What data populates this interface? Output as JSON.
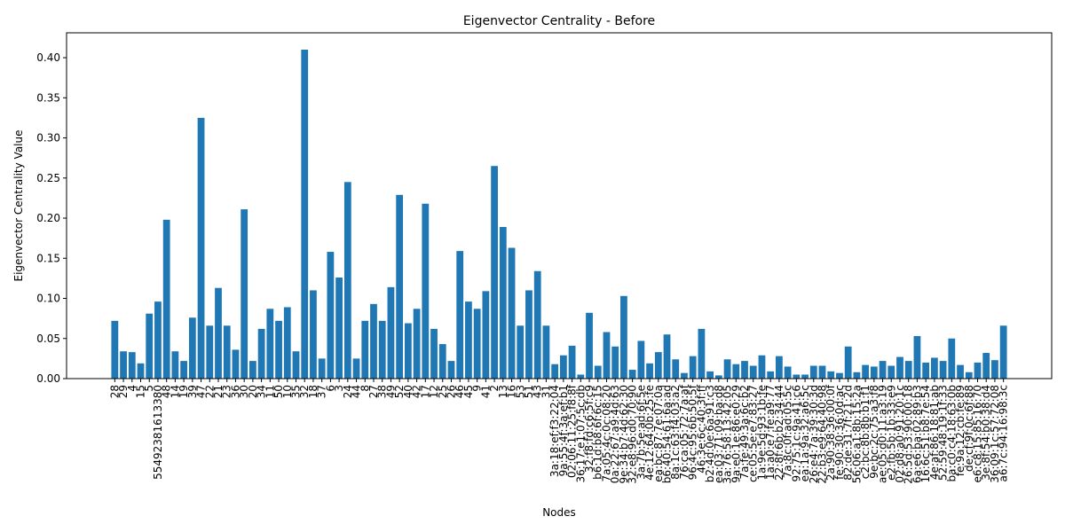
{
  "chart_data": {
    "type": "bar",
    "title": "Eigenvector Centrality - Before",
    "x_label": "Nodes",
    "y_label": "Eigenvector Centrality Value",
    "color": "#1f77b4",
    "categories": [
      "28",
      "29",
      "4",
      "15",
      "5",
      "55492381613380",
      "48",
      "14",
      "19",
      "39",
      "47",
      "22",
      "21",
      "23",
      "36",
      "30",
      "20",
      "34",
      "11",
      "50",
      "10",
      "35",
      "32",
      "18",
      "37",
      "6",
      "3",
      "24",
      "44",
      "8",
      "27",
      "38",
      "49",
      "52",
      "40",
      "42",
      "17",
      "12",
      "25",
      "26",
      "46",
      "45",
      "9",
      "41",
      "2",
      "13",
      "16",
      "53",
      "51",
      "43",
      "31",
      "3a:18:ef:f3:22:04",
      "9a:55:4f:3a:ef:b1",
      "02:06:11:25:f8:8f",
      "36:17:e1:07:5c:db",
      "32:f8:fd:c6:5f:c9",
      "b6:1d:b8:6f:6c:15",
      "7a:05:4c:0c:08:20",
      "0a:22:67:a9:4d:63",
      "9e:34:b7:4d:62:30",
      "32:e8:96:d0:70:90",
      "3a:7b:5e:ad:6f:5e",
      "4e:12:64:0b:25:fe",
      "ea:bc:87:7e:07:0a",
      "b6:40:54:61:6a:ad",
      "8a:1c:63:f4:03:a2",
      "76:ca:05:72:7a:af",
      "96:4c:95:6b:50:5f",
      "46:3e:6c:40:3f:ff",
      "b2:4d:0e:6a:91:c3",
      "ea:03:71:09:ba:d8",
      "3a:76:58:13:42:05",
      "9a:e0:1e:86:e0:29",
      "7a:fe:49:3a:6c:b2",
      "ce:05:5e:e7:83:27",
      "1a:9e:5d:93:1b:fe",
      "1a:a0:e7:fe:a9:77",
      "22:8f:6b:b2:34:44",
      "7a:8c:0f:ad:05:5c",
      "92:75:1c:9a:41:c6",
      "ea:1a:9a:32:a6:5c",
      "26:e4:7a:39:30:3d",
      "22:b3:e9:64:40:98",
      "2a:90:38:36:00:0f",
      "fe:90:30:36:0d:ac",
      "82:de:31:7f:21:2d",
      "56:06:a1:8b:15:2a",
      "c2:bc:8b:8b:b1:f1",
      "9e:bc:2c:75:a3:f8",
      "ae:05:d0:11:a3:19",
      "e2:fb:5b:1b:33:e9",
      "02:d8:a0:91:20:1c",
      "26:5d:53:90:00:18",
      "6a:e6:ba:02:89:b3",
      "16:6c:51:b8:7e:54",
      "4e:af:86:18:81:ab",
      "52:59:48:19:1f:33",
      "ba:c0:c4:18:63:0b",
      "fe:9a:12:cb:fe:89",
      "de:cf:9f:0c:6f:88",
      "e6:c8:15:85:16:70",
      "3e:8f:54:b0:38:d4",
      "36:09:1c:57:72:08",
      "a6:7c:94:16:98:3c"
    ],
    "values": [
      0.072,
      0.034,
      0.033,
      0.019,
      0.081,
      0.096,
      0.198,
      0.034,
      0.022,
      0.076,
      0.325,
      0.066,
      0.113,
      0.066,
      0.036,
      0.211,
      0.022,
      0.062,
      0.087,
      0.072,
      0.089,
      0.034,
      0.41,
      0.11,
      0.025,
      0.158,
      0.126,
      0.245,
      0.025,
      0.072,
      0.093,
      0.072,
      0.114,
      0.229,
      0.069,
      0.087,
      0.218,
      0.062,
      0.043,
      0.022,
      0.159,
      0.096,
      0.087,
      0.109,
      0.265,
      0.189,
      0.163,
      0.066,
      0.11,
      0.134,
      0.066,
      0.018,
      0.029,
      0.041,
      0.005,
      0.082,
      0.016,
      0.058,
      0.04,
      0.103,
      0.011,
      0.047,
      0.019,
      0.033,
      0.055,
      0.024,
      0.007,
      0.028,
      0.062,
      0.009,
      0.004,
      0.024,
      0.018,
      0.022,
      0.016,
      0.029,
      0.009,
      0.028,
      0.015,
      0.005,
      0.005,
      0.016,
      0.016,
      0.009,
      0.007,
      0.04,
      0.008,
      0.017,
      0.015,
      0.022,
      0.016,
      0.027,
      0.022,
      0.053,
      0.02,
      0.026,
      0.022,
      0.05,
      0.017,
      0.008,
      0.02,
      0.032,
      0.023,
      0.066
    ],
    "ylim": [
      0,
      0.431
    ],
    "yticks": [
      {
        "value": 0,
        "label": "0.00"
      },
      {
        "value": 0.05,
        "label": "0.05"
      },
      {
        "value": 0.1,
        "label": "0.10"
      },
      {
        "value": 0.15,
        "label": "0.15"
      },
      {
        "value": 0.2,
        "label": "0.20"
      },
      {
        "value": 0.25,
        "label": "0.25"
      },
      {
        "value": 0.3,
        "label": "0.30"
      },
      {
        "value": 0.35,
        "label": "0.35"
      },
      {
        "value": 0.4,
        "label": "0.40"
      }
    ],
    "grid": false
  }
}
